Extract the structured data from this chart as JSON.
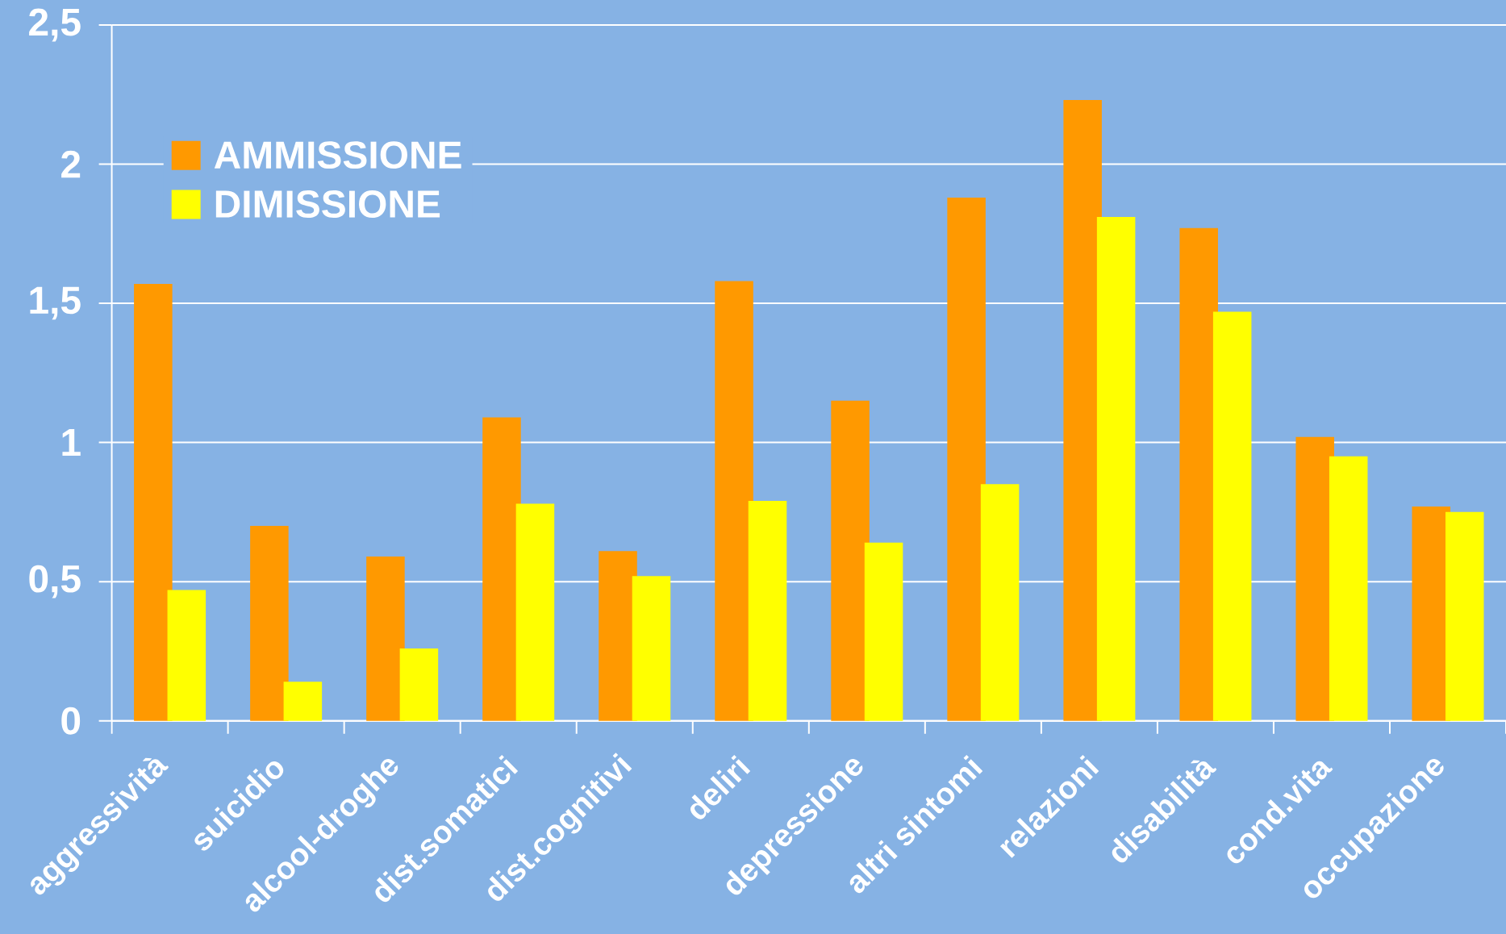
{
  "chart_data": {
    "type": "bar",
    "categories": [
      "aggressività",
      "suicidio",
      "alcool-droghe",
      "dist.somatici",
      "dist.cognitivi",
      "deliri",
      "depressione",
      "altri sintomi",
      "relazioni",
      "disabilità",
      "cond.vita",
      "occupazione"
    ],
    "series": [
      {
        "name": "AMMISSIONE",
        "color": "#ff9900",
        "values": [
          1.57,
          0.7,
          0.59,
          1.09,
          0.61,
          1.58,
          1.15,
          1.88,
          2.23,
          1.77,
          1.02,
          0.77
        ]
      },
      {
        "name": "DIMISSIONE",
        "color": "#ffff00",
        "values": [
          0.47,
          0.14,
          0.26,
          0.78,
          0.52,
          0.79,
          0.64,
          0.85,
          1.81,
          1.47,
          0.95,
          0.75
        ]
      }
    ],
    "ylim": [
      0,
      2.5
    ],
    "yticks": [
      0,
      {
        "value": 0.5,
        "label": "0,5"
      },
      1,
      {
        "value": 1.5,
        "label": "1,5"
      },
      2,
      {
        "value": 2.5,
        "label": "2,5"
      }
    ],
    "grid": "y",
    "legend": "top left"
  }
}
